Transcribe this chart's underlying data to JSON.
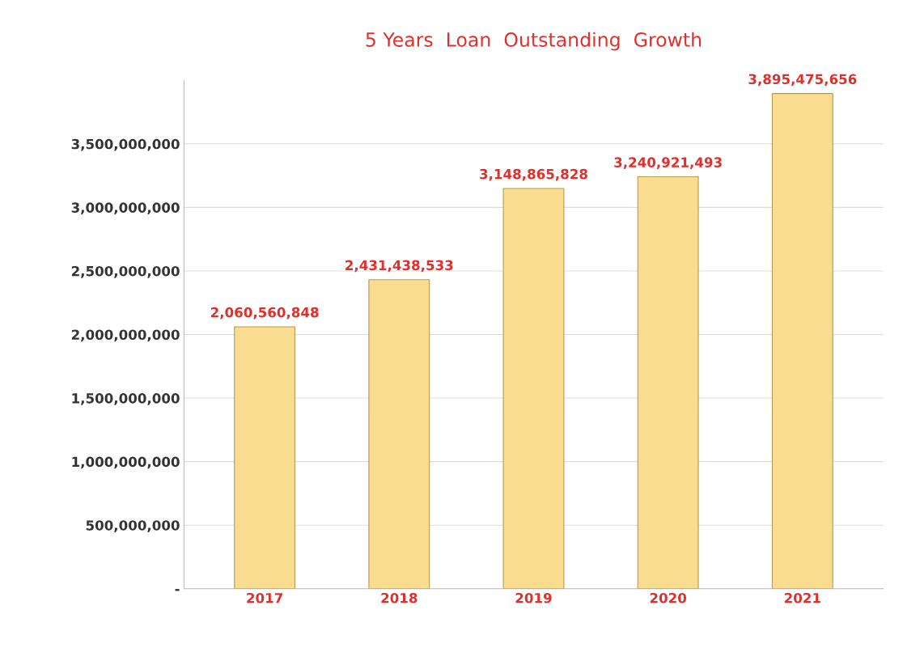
{
  "chart_data": {
    "type": "bar",
    "title": "5 Years  Loan  Outstanding  Growth",
    "categories": [
      "2017",
      "2018",
      "2019",
      "2020",
      "2021"
    ],
    "values": [
      2060560848,
      2431438533,
      3148865828,
      3240921493,
      3895475656
    ],
    "color": "#f9dc8f",
    "value_labels": [
      "2,060,560,848",
      "2,431,438,533",
      "3,148,865,828",
      "3,240,921,493",
      "3,895,475,656"
    ],
    "ylim": [
      0,
      4000000000
    ],
    "yticks": [
      {
        "value": 0,
        "label": "-"
      },
      {
        "value": 500000000,
        "label": "500,000,000"
      },
      {
        "value": 1000000000,
        "label": "1,000,000,000"
      },
      {
        "value": 1500000000,
        "label": "1,500,000,000"
      },
      {
        "value": 2000000000,
        "label": "2,000,000,000"
      },
      {
        "value": 2500000000,
        "label": "2,500,000,000"
      },
      {
        "value": 3000000000,
        "label": "3,000,000,000"
      },
      {
        "value": 3500000000,
        "label": "3,500,000,000"
      }
    ],
    "grid": "y"
  }
}
